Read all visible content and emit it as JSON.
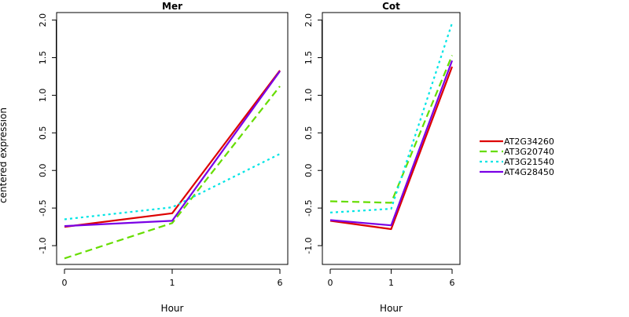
{
  "chart_data": {
    "type": "line",
    "ylabel": "centered expression",
    "xlabel": "Hour",
    "x": [
      "0",
      "1",
      "6"
    ],
    "ylim": [
      -1.25,
      2.1
    ],
    "yticks": [
      "-1.0",
      "-0.5",
      "0.0",
      "0.5",
      "1.0",
      "1.5",
      "2.0"
    ],
    "legend_position": "right",
    "series_styles": [
      {
        "name": "AT2G34260",
        "color": "#dd0000",
        "dash": "solid"
      },
      {
        "name": "AT3G20740",
        "color": "#66dd00",
        "dash": "dashed"
      },
      {
        "name": "AT3G21540",
        "color": "#00e5e5",
        "dash": "dotted"
      },
      {
        "name": "AT4G28450",
        "color": "#7a00e5",
        "dash": "solid"
      }
    ],
    "panels": [
      {
        "title": "Mer",
        "series": [
          {
            "name": "AT2G34260",
            "values": [
              -0.75,
              -0.57,
              1.33
            ]
          },
          {
            "name": "AT3G20740",
            "values": [
              -1.17,
              -0.7,
              1.12
            ]
          },
          {
            "name": "AT3G21540",
            "values": [
              -0.65,
              -0.49,
              0.22
            ]
          },
          {
            "name": "AT4G28450",
            "values": [
              -0.74,
              -0.67,
              1.32
            ]
          }
        ]
      },
      {
        "title": "Cot",
        "series": [
          {
            "name": "AT2G34260",
            "values": [
              -0.67,
              -0.78,
              1.38
            ]
          },
          {
            "name": "AT3G20740",
            "values": [
              -0.41,
              -0.43,
              1.53
            ]
          },
          {
            "name": "AT3G21540",
            "values": [
              -0.56,
              -0.51,
              1.96
            ]
          },
          {
            "name": "AT4G28450",
            "values": [
              -0.66,
              -0.73,
              1.46
            ]
          }
        ]
      }
    ]
  }
}
